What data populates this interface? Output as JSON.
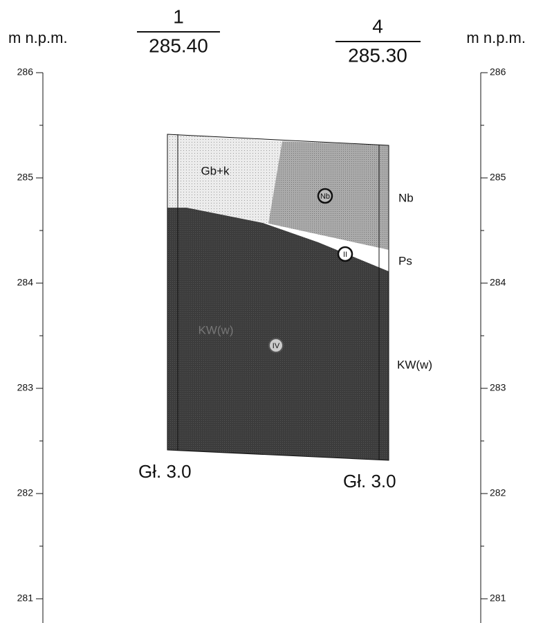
{
  "scale": {
    "unit_left": "m n.p.m.",
    "unit_right": "m n.p.m.",
    "left_ticks": [
      "286",
      "285",
      "284",
      "283",
      "282",
      "281"
    ],
    "right_ticks": [
      "286",
      "285",
      "284",
      "283",
      "282",
      "281"
    ]
  },
  "boreholes": [
    {
      "number": "1",
      "elevation": "285.40",
      "depth": "Gł. 3.0"
    },
    {
      "number": "4",
      "elevation": "285.30",
      "depth": "Gł. 3.0"
    }
  ],
  "layers": {
    "fill_label": "Gb+k",
    "left_soil": "KW(w)",
    "right_labels": [
      "Nb",
      "Ps",
      "KW(w)"
    ]
  },
  "markers": [
    "Nb",
    "II",
    "IV"
  ]
}
